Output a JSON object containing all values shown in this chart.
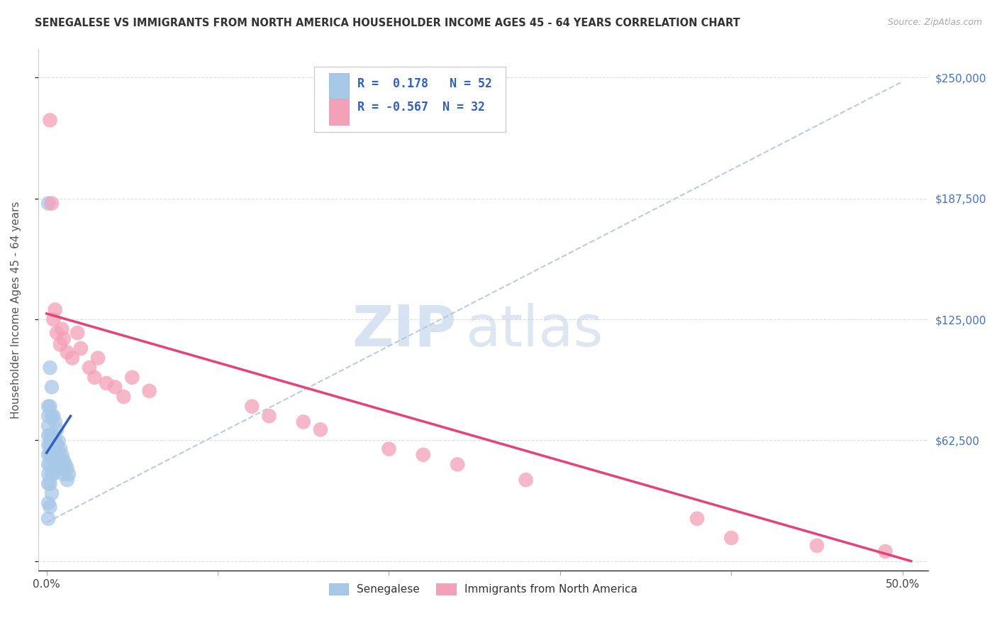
{
  "title": "SENEGALESE VS IMMIGRANTS FROM NORTH AMERICA HOUSEHOLDER INCOME AGES 45 - 64 YEARS CORRELATION CHART",
  "source": "Source: ZipAtlas.com",
  "ylabel": "Householder Income Ages 45 - 64 years",
  "xticklabels_visible": [
    "0.0%",
    "50.0%"
  ],
  "xticks_visible": [
    0.0,
    0.5
  ],
  "xticks_all": [
    0.0,
    0.1,
    0.2,
    0.3,
    0.4,
    0.5
  ],
  "xlim": [
    -0.005,
    0.515
  ],
  "ylim": [
    -5000,
    265000
  ],
  "ytick_values": [
    0,
    62500,
    125000,
    187500,
    250000
  ],
  "ytick_labels": [
    "",
    "$62,500",
    "$125,000",
    "$187,500",
    "$250,000"
  ],
  "legend1_label": "Senegalese",
  "legend2_label": "Immigrants from North America",
  "r1": 0.178,
  "n1": 52,
  "r2": -0.567,
  "n2": 32,
  "blue_color": "#a8c8e8",
  "pink_color": "#f4a0b8",
  "blue_line_color": "#3060c0",
  "pink_line_color": "#e8407a",
  "dashed_line_color": "#b0c8e0",
  "watermark_zip": "ZIP",
  "watermark_atlas": "atlas",
  "background_color": "#ffffff",
  "grid_color": "#d8d8d8",
  "blue_x": [
    0.001,
    0.001,
    0.001,
    0.001,
    0.001,
    0.001,
    0.001,
    0.001,
    0.001,
    0.001,
    0.002,
    0.002,
    0.002,
    0.002,
    0.002,
    0.002,
    0.002,
    0.003,
    0.003,
    0.003,
    0.003,
    0.003,
    0.003,
    0.004,
    0.004,
    0.004,
    0.004,
    0.004,
    0.005,
    0.005,
    0.005,
    0.005,
    0.006,
    0.006,
    0.006,
    0.007,
    0.007,
    0.007,
    0.008,
    0.008,
    0.009,
    0.009,
    0.01,
    0.01,
    0.011,
    0.012,
    0.012,
    0.013,
    0.001,
    0.001,
    0.002,
    0.003
  ],
  "blue_y": [
    185000,
    80000,
    75000,
    70000,
    65000,
    60000,
    55000,
    50000,
    45000,
    40000,
    100000,
    80000,
    65000,
    60000,
    55000,
    50000,
    40000,
    90000,
    75000,
    65000,
    60000,
    55000,
    45000,
    75000,
    65000,
    58000,
    52000,
    45000,
    72000,
    62000,
    55000,
    48000,
    68000,
    60000,
    52000,
    62000,
    55000,
    48000,
    58000,
    50000,
    55000,
    48000,
    52000,
    45000,
    50000,
    48000,
    42000,
    45000,
    30000,
    22000,
    28000,
    35000
  ],
  "pink_x": [
    0.002,
    0.003,
    0.004,
    0.005,
    0.006,
    0.008,
    0.009,
    0.01,
    0.012,
    0.015,
    0.018,
    0.02,
    0.025,
    0.028,
    0.03,
    0.035,
    0.04,
    0.045,
    0.05,
    0.06,
    0.12,
    0.13,
    0.15,
    0.16,
    0.2,
    0.22,
    0.24,
    0.28,
    0.38,
    0.4,
    0.45,
    0.49
  ],
  "pink_y": [
    228000,
    185000,
    125000,
    130000,
    118000,
    112000,
    120000,
    115000,
    108000,
    105000,
    118000,
    110000,
    100000,
    95000,
    105000,
    92000,
    90000,
    85000,
    95000,
    88000,
    80000,
    75000,
    72000,
    68000,
    58000,
    55000,
    50000,
    42000,
    22000,
    12000,
    8000,
    5000
  ],
  "pink_line_x0": 0.0,
  "pink_line_y0": 128000,
  "pink_line_x1": 0.505,
  "pink_line_y1": 0,
  "blue_line_x0": 0.0,
  "blue_line_y0": 56000,
  "blue_line_x1": 0.014,
  "blue_line_y1": 75000,
  "dash_line_x0": 0.0,
  "dash_line_y0": 20000,
  "dash_line_x1": 0.5,
  "dash_line_y1": 248000
}
